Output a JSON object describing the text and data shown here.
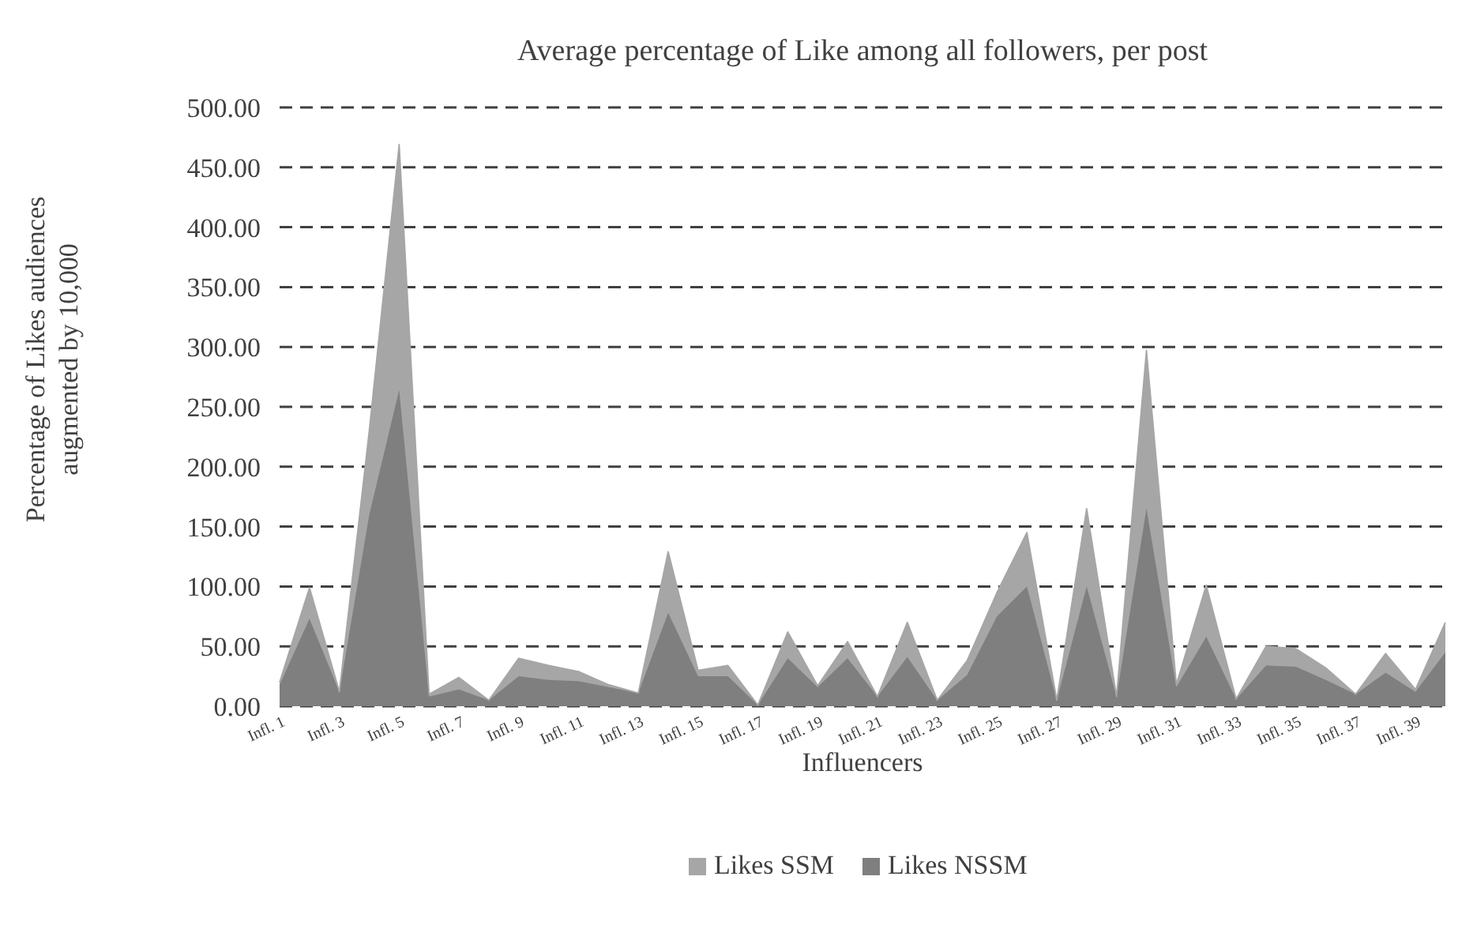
{
  "chart_data": {
    "type": "area",
    "title": "Average percentage of Like among all followers, per post",
    "xlabel": "Influencers",
    "ylabel": "Percentage of Likes audiences\naugmented by 10,000",
    "categories": [
      "Infl. 1",
      null,
      "Infl. 3",
      null,
      "Infl. 5",
      null,
      "Infl. 7",
      null,
      "Infl. 9",
      null,
      "Infl. 11",
      null,
      "Infl. 13",
      null,
      "Infl. 15",
      null,
      "Infl. 17",
      null,
      "Infl. 19",
      null,
      "Infl. 21",
      null,
      "Infl. 23",
      null,
      "Infl. 25",
      null,
      "Infl. 27",
      null,
      "Infl. 29",
      null,
      "Infl. 31",
      null,
      "Infl. 33",
      null,
      "Infl. 35",
      null,
      "Infl. 37",
      null,
      "Infl. 39",
      null
    ],
    "series": [
      {
        "name": "Likes SSM",
        "color": "#a6a6a6",
        "values": [
          20,
          99,
          12,
          230,
          469,
          10,
          24,
          5,
          40,
          34,
          29,
          18,
          11,
          129,
          30,
          34,
          1,
          62,
          17,
          54,
          8,
          70,
          5,
          38,
          95,
          145,
          5,
          165,
          8,
          297,
          18,
          101,
          6,
          50,
          48,
          32,
          10,
          44,
          14,
          70
        ]
      },
      {
        "name": "Likes NSSM",
        "color": "#7f7f7f",
        "values": [
          18,
          73,
          12,
          160,
          264,
          8,
          14,
          5,
          25,
          22,
          21,
          16,
          11,
          78,
          25,
          25,
          1,
          40,
          16,
          40,
          8,
          41,
          5,
          26,
          75,
          100,
          5,
          100,
          8,
          165,
          16,
          58,
          6,
          34,
          33,
          22,
          10,
          28,
          12,
          45
        ]
      }
    ],
    "ylim": [
      0,
      500
    ],
    "yticks": [
      {
        "value": 0,
        "label": "0.00"
      },
      {
        "value": 50,
        "label": "50.00"
      },
      {
        "value": 100,
        "label": "100.00"
      },
      {
        "value": 150,
        "label": "150.00"
      },
      {
        "value": 200,
        "label": "200.00"
      },
      {
        "value": 250,
        "label": "250.00"
      },
      {
        "value": 300,
        "label": "300.00"
      },
      {
        "value": 350,
        "label": "350.00"
      },
      {
        "value": 400,
        "label": "400.00"
      },
      {
        "value": 450,
        "label": "450.00"
      },
      {
        "value": 500,
        "label": "500.00"
      }
    ],
    "grid": "y",
    "legend": "bottom"
  }
}
